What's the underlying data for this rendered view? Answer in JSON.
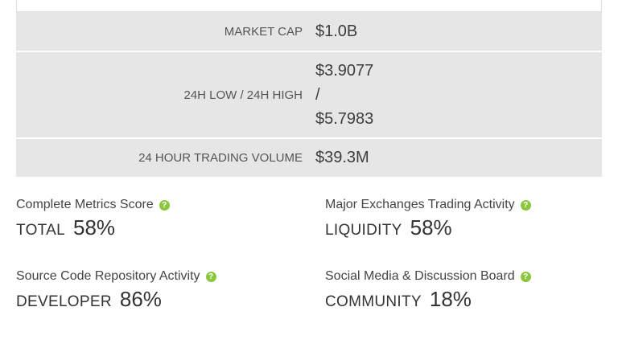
{
  "stats": {
    "market_cap": {
      "label": "MARKET CAP",
      "value": "$1.0B"
    },
    "low_high": {
      "label": "24H LOW / 24H HIGH",
      "low": "$3.9077",
      "sep": "/",
      "high": "$5.7983"
    },
    "volume": {
      "label": "24 HOUR TRADING VOLUME",
      "value": "$39.3M"
    }
  },
  "scores": [
    {
      "title": "Complete Metrics Score",
      "name": "TOTAL",
      "percent": "58%",
      "icon": "question-icon"
    },
    {
      "title": "Major Exchanges Trading Activity",
      "name": "LIQUIDITY",
      "percent": "58%",
      "icon": "question-icon"
    },
    {
      "title": "Source Code Repository Activity",
      "name": "DEVELOPER",
      "percent": "86%",
      "icon": "question-icon"
    },
    {
      "title": "Social Media & Discussion Board",
      "name": "COMMUNITY",
      "percent": "18%",
      "icon": "question-icon"
    }
  ],
  "help_glyph": "?",
  "colors": {
    "row_bg": "#e6e6e6",
    "help_icon": "#8cc63f",
    "text": "#444444"
  }
}
